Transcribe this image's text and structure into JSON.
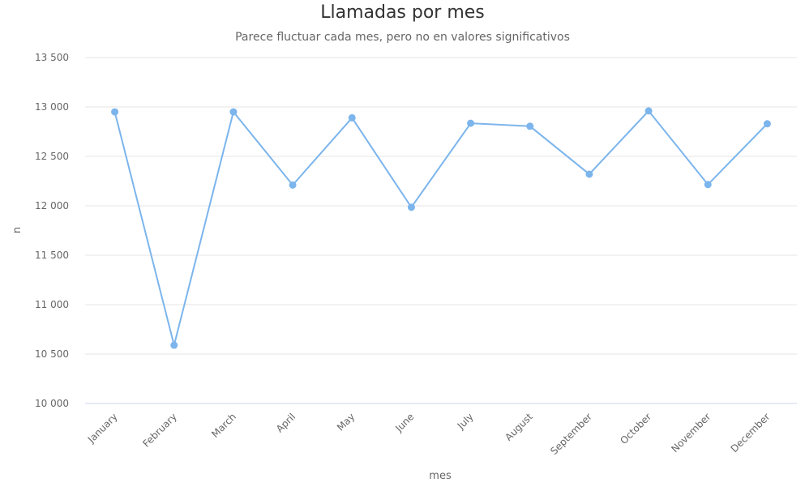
{
  "chart_data": {
    "type": "line",
    "title": "Llamadas por mes",
    "subtitle": "Parece fluctuar cada mes, pero no en valores significativos",
    "xlabel": "mes",
    "ylabel": "n",
    "categories": [
      "January",
      "February",
      "March",
      "April",
      "May",
      "June",
      "July",
      "August",
      "September",
      "October",
      "November",
      "December"
    ],
    "series": [
      {
        "values": [
          12950,
          10590,
          12950,
          12210,
          12890,
          11985,
          12835,
          12805,
          12320,
          12960,
          12215,
          12830
        ]
      }
    ],
    "ylim": [
      10000,
      13500
    ],
    "yticks": [
      10000,
      10500,
      11000,
      11500,
      12000,
      12500,
      13000,
      13500
    ],
    "ytick_labels": [
      "10 000",
      "10 500",
      "11 000",
      "11 500",
      "12 000",
      "12 500",
      "13 000",
      "13 500"
    ],
    "grid": true,
    "legend": "none",
    "colors": {
      "line": "#7cb5ec",
      "grid": "#e6e6e6",
      "axis": "#ccd6eb"
    }
  }
}
